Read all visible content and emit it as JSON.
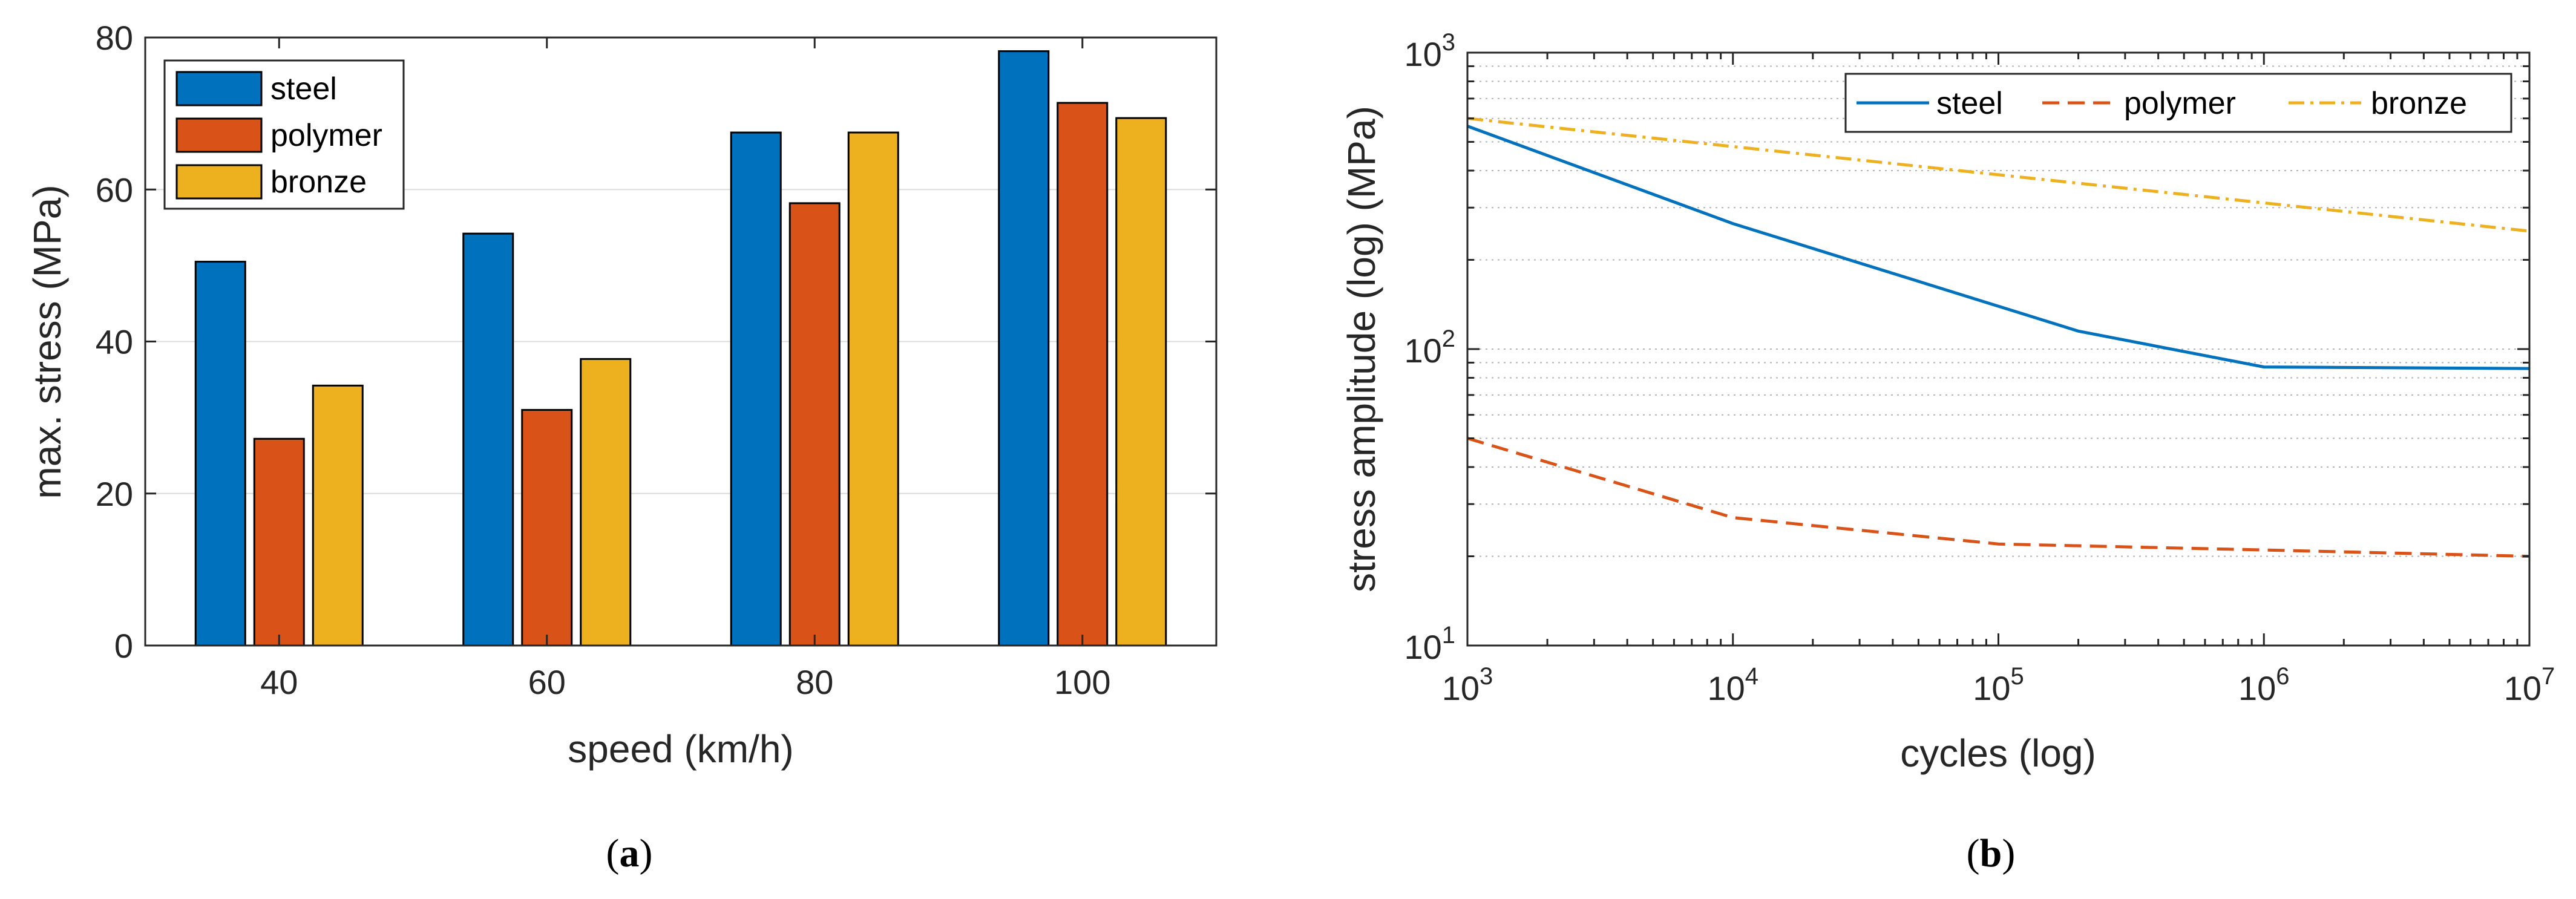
{
  "chart_data": [
    {
      "type": "bar",
      "panel_label": "a",
      "categories": [
        "40",
        "60",
        "80",
        "100"
      ],
      "series": [
        {
          "name": "steel",
          "values": [
            50.5,
            54.2,
            67.5,
            78.2
          ],
          "color": "#0072BD"
        },
        {
          "name": "polymer",
          "values": [
            27.2,
            31.0,
            58.2,
            71.4
          ],
          "color": "#D95319"
        },
        {
          "name": "bronze",
          "values": [
            34.2,
            37.7,
            67.5,
            69.4
          ],
          "color": "#EDB120"
        }
      ],
      "xlabel": "speed (km/h)",
      "ylabel": "max. stress (MPa)",
      "ylim": [
        0,
        80
      ],
      "yticks": [
        "0",
        "20",
        "40",
        "60",
        "80"
      ],
      "grid": "horizontal major",
      "legend_position": "top-left"
    },
    {
      "type": "line",
      "panel_label": "b",
      "xscale": "log",
      "yscale": "log",
      "xlim": [
        1000,
        10000000
      ],
      "ylim": [
        10,
        1000
      ],
      "xticks": [
        {
          "base": "10",
          "exp": "3"
        },
        {
          "base": "10",
          "exp": "4"
        },
        {
          "base": "10",
          "exp": "5"
        },
        {
          "base": "10",
          "exp": "6"
        },
        {
          "base": "10",
          "exp": "7"
        }
      ],
      "yticks": [
        {
          "base": "10",
          "exp": "1"
        },
        {
          "base": "10",
          "exp": "2"
        },
        {
          "base": "10",
          "exp": "3"
        }
      ],
      "series": [
        {
          "name": "steel",
          "style": "solid",
          "color": "#0072BD",
          "x": [
            1000,
            10000,
            200000,
            1000000,
            10000000
          ],
          "y": [
            565,
            265,
            115,
            87,
            86
          ]
        },
        {
          "name": "polymer",
          "style": "dashed",
          "color": "#D95319",
          "x": [
            1000,
            10000,
            100000,
            1000000,
            10000000
          ],
          "y": [
            50,
            27,
            22,
            21,
            20
          ]
        },
        {
          "name": "bronze",
          "style": "dashdot",
          "color": "#EDB120",
          "x": [
            1000,
            10000000
          ],
          "y": [
            600,
            250
          ]
        }
      ],
      "xlabel": "cycles (log)",
      "ylabel": "stress amplitude (log) (MPa)",
      "grid": "horizontal major and minor (dotted)",
      "legend_position": "top-right"
    }
  ]
}
